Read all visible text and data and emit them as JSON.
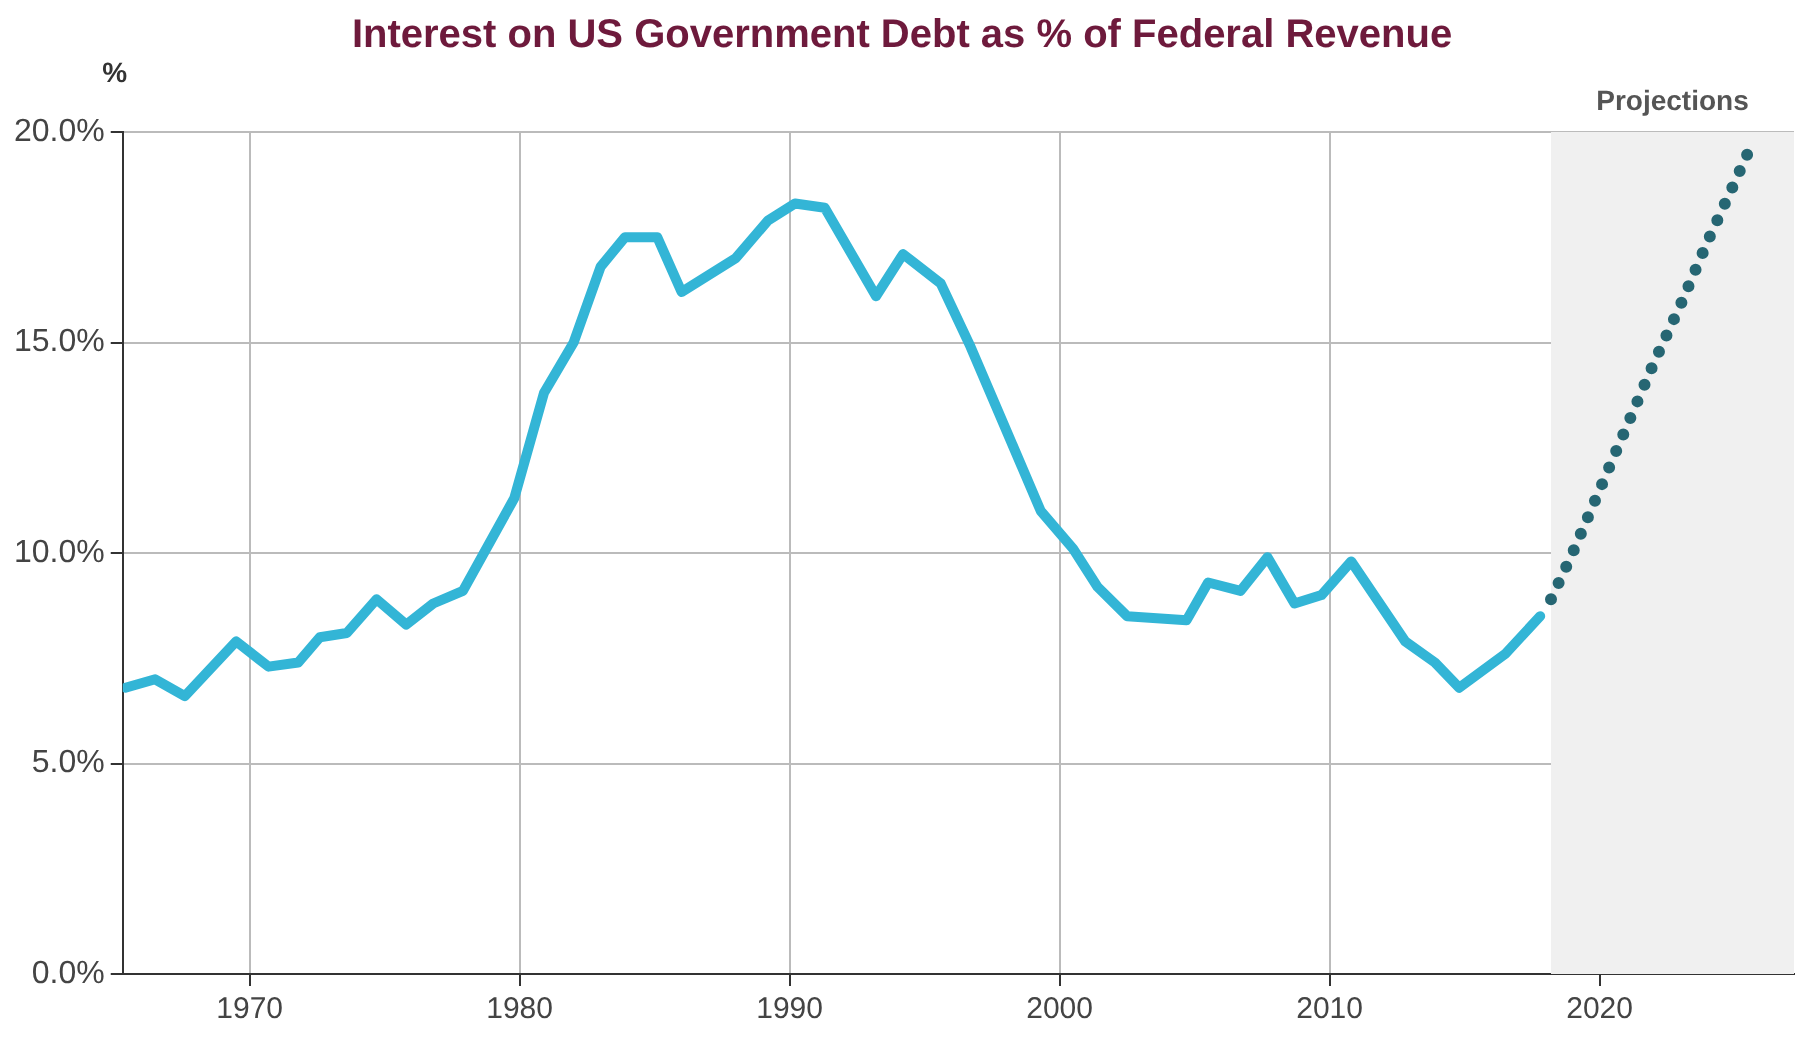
{
  "chart_data": {
    "type": "line",
    "title": "Interest on US Government Debt as % of Federal Revenue",
    "ylabel": "%",
    "series": [
      {
        "color": "#33b5d6",
        "line_style": "solid",
        "x": [
          1965.4,
          1966.5,
          1967.6,
          1969.5,
          1970.7,
          1971.8,
          1972.6,
          1973.6,
          1974.7,
          1975.8,
          1976.8,
          1977.9,
          1979.8,
          1980.9,
          1982.0,
          1983.0,
          1983.9,
          1985.1,
          1986.0,
          1988.0,
          1989.2,
          1990.2,
          1991.3,
          1993.2,
          1994.2,
          1995.6,
          1996.7,
          1999.3,
          2000.5,
          2001.4,
          2002.5,
          2004.7,
          2005.5,
          2006.7,
          2007.7,
          2008.7,
          2009.7,
          2010.8,
          2012.8,
          2013.9,
          2014.8,
          2016.5,
          2017.8
        ],
        "values": [
          6.8,
          7.0,
          6.6,
          7.9,
          7.3,
          7.4,
          8.0,
          8.1,
          8.9,
          8.3,
          8.8,
          9.1,
          11.3,
          13.8,
          15.0,
          16.8,
          17.5,
          17.5,
          16.2,
          17.0,
          17.9,
          18.3,
          18.2,
          16.1,
          17.1,
          16.4,
          14.9,
          11.0,
          10.1,
          9.2,
          8.5,
          8.4,
          9.3,
          9.1,
          9.9,
          8.8,
          9.0,
          9.8,
          7.9,
          7.4,
          6.8,
          7.6,
          8.5
        ]
      },
      {
        "color": "#266673",
        "line_style": "dotted",
        "x": [
          2018.2,
          2019.0,
          2020.0,
          2021.0,
          2022.0,
          2023.0,
          2024.0,
          2025.0,
          2025.7
        ],
        "values": [
          8.9,
          10.0,
          11.5,
          13.0,
          14.5,
          15.9,
          17.4,
          18.8,
          19.8
        ]
      }
    ],
    "xlim": [
      1965.3,
      2027.2
    ],
    "xticks": [
      1970,
      1980,
      1990,
      2000,
      2010,
      2020
    ],
    "ylim": [
      0,
      20
    ],
    "yticks": [
      {
        "value": 0,
        "label": "0.0%"
      },
      {
        "value": 5,
        "label": "5.0%"
      },
      {
        "value": 10,
        "label": "10.0%"
      },
      {
        "value": 15,
        "label": "15.0%"
      },
      {
        "value": 20,
        "label": "20.0%"
      }
    ],
    "bands": [
      {
        "axis": "x",
        "from": 2018.2,
        "to": 2027.2,
        "label": "Projections",
        "color": "#f0f0f0"
      }
    ],
    "grid": true,
    "legend": false,
    "marker": "none"
  }
}
